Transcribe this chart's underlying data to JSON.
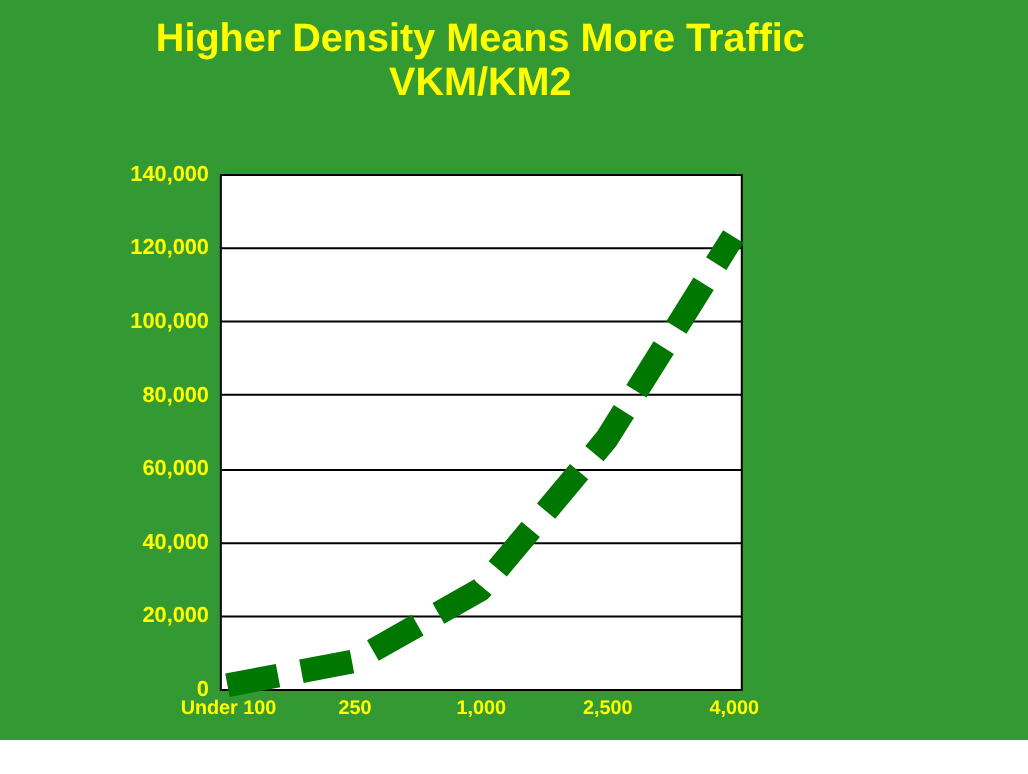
{
  "chart_data": {
    "type": "line",
    "title": "Higher Density Means More Traffic",
    "subtitle": "VKM/KM2",
    "categories": [
      "Under 100",
      "250",
      "1,000",
      "2,500",
      "4,000"
    ],
    "series": [
      {
        "color": "#007700",
        "values": [
          1000,
          7500,
          27000,
          68000,
          123000
        ]
      }
    ],
    "ylim": [
      0,
      140000
    ],
    "yticks": [
      {
        "value": 0,
        "label": "0"
      },
      {
        "value": 20000,
        "label": "20,000"
      },
      {
        "value": 40000,
        "label": "40,000"
      },
      {
        "value": 60000,
        "label": "60,000"
      },
      {
        "value": 80000,
        "label": "80,000"
      },
      {
        "value": 100000,
        "label": "100,000"
      },
      {
        "value": 120000,
        "label": "120,000"
      },
      {
        "value": 140000,
        "label": "140,000"
      }
    ],
    "grid": "y",
    "line_style": "dashed",
    "marker": "none"
  }
}
